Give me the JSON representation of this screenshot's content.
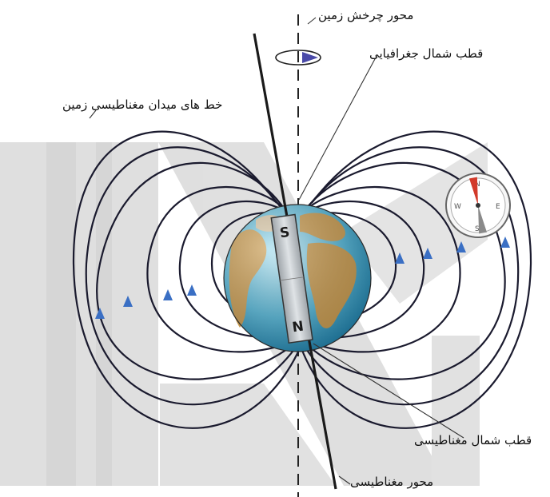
{
  "labels": {
    "rotation_axis": "محور چرخش زمین",
    "geographic_north": "قطب شمال جغرافیایی",
    "field_lines": "خط های میدان مغناطیسی زمین",
    "magnetic_north": "قطب شمال مغناطیسی",
    "magnetic_axis": "محور مغناطیسی"
  },
  "magnet": {
    "top_pole": "S",
    "bottom_pole": "N"
  },
  "compass": {
    "n": "N",
    "e": "E",
    "s": "S",
    "w": "W"
  },
  "colors": {
    "watermark": "#d8d8d8",
    "field_line": "#1a1a2e",
    "arrow": "#3a6fc4",
    "ocean": "#4fb4d6",
    "land": "#c89a4e",
    "magnet": "#bfc4c8",
    "needle_red": "#d23a2a"
  }
}
